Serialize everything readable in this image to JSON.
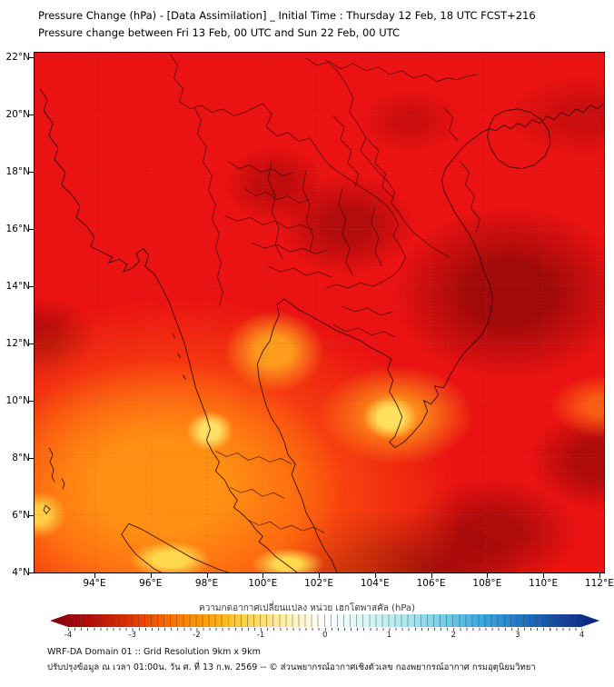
{
  "title": {
    "line1": "Pressure Change (hPa) - [Data Assimilation] _ Initial Time : Thursday 12 Feb, 18 UTC FCST+216",
    "line2": "Pressure change between Fri 13 Feb, 00 UTC and Sun 22 Feb, 00 UTC"
  },
  "map": {
    "lat_labels": [
      "22°N",
      "20°N",
      "18°N",
      "16°N",
      "14°N",
      "12°N",
      "10°N",
      "8°N",
      "6°N",
      "4°N"
    ],
    "lon_labels": [
      "94°E",
      "96°E",
      "98°E",
      "100°E",
      "102°E",
      "104°E",
      "106°E",
      "108°E",
      "110°E",
      "112°E"
    ]
  },
  "colorbar": {
    "label": "ความกดอากาศเปลี่ยนแปลง หน่วย เฮกโตพาสคัล (hPa)",
    "tick_labels": [
      "-4",
      "-3",
      "-2",
      "-1",
      "0",
      "1",
      "2",
      "3",
      "4"
    ],
    "min": -4,
    "max": 4,
    "gradient": [
      "#7f0010",
      "#b10d09",
      "#e32f00",
      "#ff6a00",
      "#ffa200",
      "#ffd34d",
      "#fff0a8",
      "#ffffff",
      "#dbf7f4",
      "#aee9f0",
      "#74cfe8",
      "#3aa9df",
      "#1f77c4",
      "#1446a0",
      "#0a1f78"
    ]
  },
  "accent_colors": {
    "field_base_red": "#ea1212",
    "field_dark_red": "#a00c0c",
    "field_orange": "#ff9014",
    "field_yellow": "#ffe066"
  },
  "footer": {
    "line1": "WRF-DA Domain 01 :: Grid Resolution 9km x 9km",
    "line2": "ปรับปรุงข้อมูล ณ เวลา 01:00น. วัน ศ. ที่ 13 ก.พ. 2569 -- © ส่วนพยากรณ์อากาศเชิงตัวเลข กองพยากรณ์อากาศ กรมอุตุนิยมวิทยา"
  }
}
